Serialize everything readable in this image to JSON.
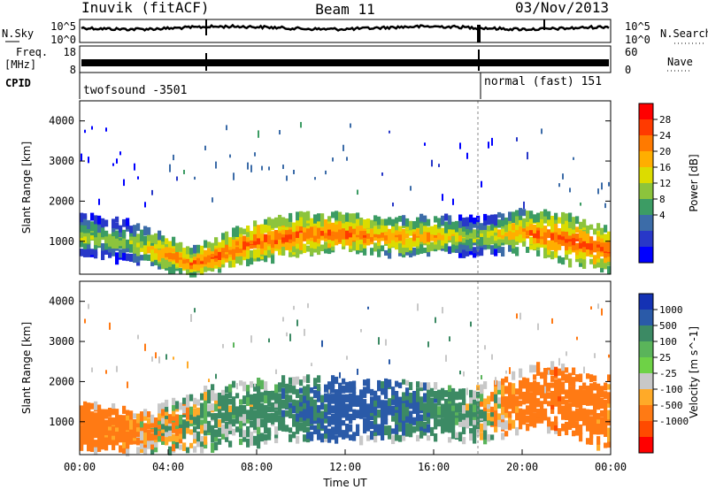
{
  "header": {
    "station": "Inuvik (fitACF)",
    "beam": "Beam 11",
    "date": "03/Nov/2013"
  },
  "noise_panel": {
    "left_label": "N.Sky",
    "right_label": "N.Search",
    "left_ticks": [
      "10^5",
      "10^0"
    ],
    "right_ticks": [
      "10^5",
      "10^0"
    ]
  },
  "freq_panel": {
    "left_label_1": "Freq.",
    "left_label_2": "[MHz]",
    "right_label": "Nave",
    "left_ticks": [
      "18",
      "8"
    ],
    "right_ticks": [
      "60",
      "0"
    ]
  },
  "cpid_panel": {
    "label": "CPID",
    "segments": [
      {
        "name": "twofsound -3501",
        "start": "00:00",
        "end": "18:00"
      },
      {
        "name": "normal (fast) 151",
        "start": "18:00",
        "end": "00:00"
      }
    ]
  },
  "chart_data": [
    {
      "type": "heatmap",
      "name": "power",
      "ylabel": "Slant Range [km]",
      "ylim": [
        180,
        4500
      ],
      "yticks": [
        "1000",
        "2000",
        "3000",
        "4000"
      ],
      "xlabel": "Time UT",
      "xticks": [
        "00:00",
        "04:00",
        "08:00",
        "12:00",
        "16:00",
        "20:00",
        "00:00"
      ],
      "colorbar_label": "Power [dB]",
      "colorbar_ticks": [
        "28",
        "24",
        "20",
        "16",
        "12",
        "8",
        "4"
      ],
      "colorbar_colors": [
        "#ff0000",
        "#ff3a00",
        "#ff7a00",
        "#ffae00",
        "#dcdc00",
        "#8cc43c",
        "#3c9c64",
        "#3c6ca8",
        "#2838c8",
        "#0000ff"
      ],
      "band_values": [
        {
          "t": 0,
          "center": 1200,
          "width": 500,
          "db": 20
        },
        {
          "t": 2,
          "center": 1050,
          "width": 500,
          "db": 18
        },
        {
          "t": 4,
          "center": 750,
          "width": 420,
          "db": 26
        },
        {
          "t": 5,
          "center": 500,
          "width": 300,
          "db": 28
        },
        {
          "t": 6,
          "center": 650,
          "width": 400,
          "db": 28
        },
        {
          "t": 8,
          "center": 1050,
          "width": 500,
          "db": 28
        },
        {
          "t": 10,
          "center": 1200,
          "width": 500,
          "db": 28
        },
        {
          "t": 12,
          "center": 1250,
          "width": 450,
          "db": 28
        },
        {
          "t": 14,
          "center": 1150,
          "width": 450,
          "db": 26
        },
        {
          "t": 16,
          "center": 1200,
          "width": 450,
          "db": 24
        },
        {
          "t": 18,
          "center": 1150,
          "width": 450,
          "db": 18
        },
        {
          "t": 20,
          "center": 1300,
          "width": 500,
          "db": 26
        },
        {
          "t": 22,
          "center": 1100,
          "width": 600,
          "db": 28
        },
        {
          "t": 24,
          "center": 800,
          "width": 500,
          "db": 28
        }
      ]
    },
    {
      "type": "heatmap",
      "name": "velocity",
      "ylabel": "Slant Range [km]",
      "ylim": [
        180,
        4500
      ],
      "yticks": [
        "1000",
        "2000",
        "3000",
        "4000"
      ],
      "xlabel": "Time UT",
      "xticks": [
        "00:00",
        "04:00",
        "08:00",
        "12:00",
        "16:00",
        "20:00",
        "00:00"
      ],
      "colorbar_label": "Velocity [m s^-1]",
      "colorbar_ticks": [
        "1000",
        "500",
        "100",
        "25",
        "-25",
        "-100",
        "-500",
        "-1000"
      ],
      "colorbar_colors": [
        "#1432b4",
        "#2a5aa8",
        "#3c8a64",
        "#5ab45a",
        "#6ed246",
        "#c8c8c8",
        "#ffaa28",
        "#ff7a14",
        "#ff4a00",
        "#ff0000"
      ],
      "band_values": [
        {
          "t": 0,
          "center": 900,
          "width": 600,
          "v": -300
        },
        {
          "t": 3,
          "center": 800,
          "width": 500,
          "v": -100
        },
        {
          "t": 6,
          "center": 1100,
          "width": 800,
          "v": 80
        },
        {
          "t": 9,
          "center": 1300,
          "width": 800,
          "v": 150
        },
        {
          "t": 12,
          "center": 1350,
          "width": 800,
          "v": 500
        },
        {
          "t": 15,
          "center": 1300,
          "width": 700,
          "v": 300
        },
        {
          "t": 18,
          "center": 1200,
          "width": 700,
          "v": 60
        },
        {
          "t": 21,
          "center": 1700,
          "width": 800,
          "v": -400
        },
        {
          "t": 24,
          "center": 1200,
          "width": 900,
          "v": -200
        }
      ]
    }
  ]
}
